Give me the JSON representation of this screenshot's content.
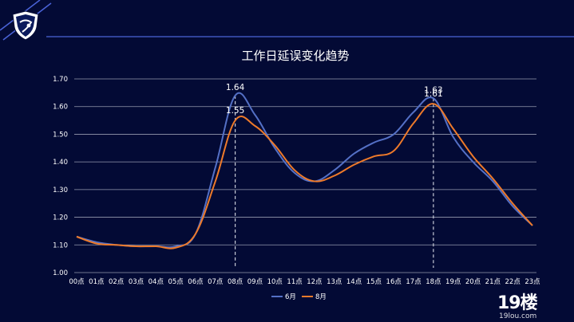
{
  "colors": {
    "background": "#030a35",
    "series_june": "#5470c6",
    "series_august": "#ee7a2a",
    "header_line": "#4a63d8",
    "grid": "#c8cbd8",
    "text": "#ffffff"
  },
  "watermark": {
    "text": "19楼",
    "sub": "19lou.com"
  },
  "chart_data": {
    "type": "line",
    "title": "工作日延误变化趋势",
    "xlabel": "",
    "ylabel": "",
    "categories": [
      "00点",
      "01点",
      "02点",
      "03点",
      "04点",
      "05点",
      "06点",
      "07点",
      "08点",
      "09点",
      "10点",
      "11点",
      "12点",
      "13点",
      "14点",
      "15点",
      "16点",
      "17点",
      "18点",
      "19点",
      "20点",
      "21点",
      "22点",
      "23点"
    ],
    "ylim": [
      1.0,
      1.7
    ],
    "yticks": [
      "1.00",
      "1.10",
      "1.20",
      "1.30",
      "1.40",
      "1.50",
      "1.60",
      "1.70"
    ],
    "grid": true,
    "legend": "bottom-center",
    "series": [
      {
        "name": "6月",
        "color": "#5470c6",
        "values": [
          1.13,
          1.11,
          1.1,
          1.095,
          1.095,
          1.095,
          1.14,
          1.38,
          1.64,
          1.57,
          1.45,
          1.36,
          1.33,
          1.37,
          1.43,
          1.47,
          1.5,
          1.58,
          1.63,
          1.49,
          1.4,
          1.33,
          1.24,
          1.17
        ]
      },
      {
        "name": "8月",
        "color": "#ee7a2a",
        "values": [
          1.13,
          1.105,
          1.1,
          1.095,
          1.095,
          1.09,
          1.14,
          1.33,
          1.55,
          1.53,
          1.46,
          1.37,
          1.33,
          1.35,
          1.39,
          1.42,
          1.44,
          1.54,
          1.61,
          1.52,
          1.42,
          1.34,
          1.25,
          1.17
        ]
      }
    ],
    "annotations": [
      {
        "category": "08点",
        "series": "6月",
        "text": "1.64"
      },
      {
        "category": "08点",
        "series": "8月",
        "text": "1.55"
      },
      {
        "category": "18点",
        "series": "6月",
        "text": "1.63"
      },
      {
        "category": "18点",
        "series": "8月",
        "text": "1.61"
      }
    ],
    "markers": [
      "08点",
      "18点"
    ]
  }
}
